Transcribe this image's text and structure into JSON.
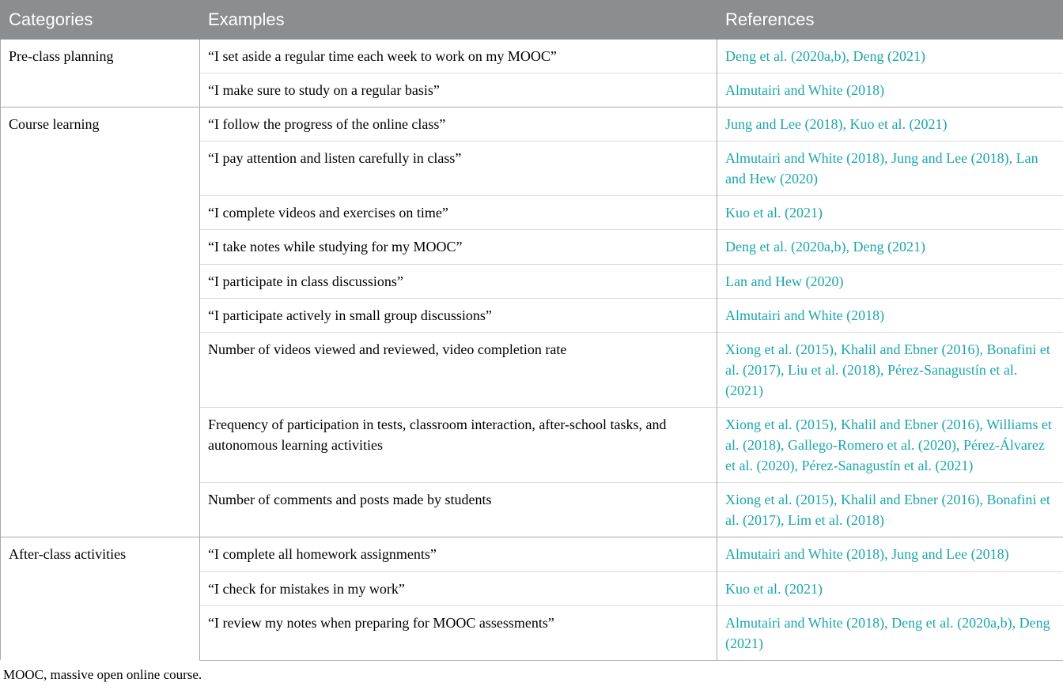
{
  "table": {
    "headers": {
      "categories": "Categories",
      "examples": "Examples",
      "references": "References"
    },
    "link_color": "#1ba6a8",
    "header_bg": "#8b8e91",
    "header_fg": "#ffffff",
    "border_color": "#a9a9a9",
    "inner_border_color": "#dcdcdc",
    "groups": [
      {
        "category": "Pre-class planning",
        "rows": [
          {
            "example": "“I set aside a regular time each week to work on my MOOC”",
            "refs": [
              {
                "t": "Deng et al. (",
                "l": false
              },
              {
                "t": "2020a",
                "l": true
              },
              {
                "t": ",",
                "l": false
              },
              {
                "t": "b",
                "l": true
              },
              {
                "t": "), ",
                "l": false
              },
              {
                "t": "Deng (",
                "l": false
              },
              {
                "t": "2021",
                "l": true
              },
              {
                "t": ")",
                "l": false
              }
            ]
          },
          {
            "example": "“I make sure to study on a regular basis”",
            "refs": [
              {
                "t": "Almutairi and White (",
                "l": false
              },
              {
                "t": "2018",
                "l": true
              },
              {
                "t": ")",
                "l": false
              }
            ]
          }
        ]
      },
      {
        "category": "Course learning",
        "rows": [
          {
            "example": "“I follow the progress of the online class”",
            "refs": [
              {
                "t": "Jung and Lee (",
                "l": false
              },
              {
                "t": "2018",
                "l": true
              },
              {
                "t": "), ",
                "l": false
              },
              {
                "t": "Kuo et al. (",
                "l": false
              },
              {
                "t": "2021",
                "l": true
              },
              {
                "t": ")",
                "l": false
              }
            ]
          },
          {
            "example": "“I pay attention and listen carefully in class”",
            "refs": [
              {
                "t": "Almutairi and White (",
                "l": false
              },
              {
                "t": "2018",
                "l": true
              },
              {
                "t": "), ",
                "l": false
              },
              {
                "t": "Jung and Lee (",
                "l": false
              },
              {
                "t": "2018",
                "l": true
              },
              {
                "t": "), ",
                "l": false
              },
              {
                "t": "Lan and Hew (",
                "l": false
              },
              {
                "t": "2020",
                "l": true
              },
              {
                "t": ")",
                "l": false
              }
            ]
          },
          {
            "example": "“I complete videos and exercises on time”",
            "refs": [
              {
                "t": "Kuo et al. (",
                "l": false
              },
              {
                "t": "2021",
                "l": true
              },
              {
                "t": ")",
                "l": false
              }
            ]
          },
          {
            "example": "“I take notes while studying for my MOOC”",
            "refs": [
              {
                "t": "Deng et al. (",
                "l": false
              },
              {
                "t": "2020a",
                "l": true
              },
              {
                "t": ",",
                "l": false
              },
              {
                "t": "b",
                "l": true
              },
              {
                "t": "), ",
                "l": false
              },
              {
                "t": "Deng (",
                "l": false
              },
              {
                "t": "2021",
                "l": true
              },
              {
                "t": ")",
                "l": false
              }
            ]
          },
          {
            "example": "“I participate in class discussions”",
            "refs": [
              {
                "t": "Lan and Hew (",
                "l": false
              },
              {
                "t": "2020",
                "l": true
              },
              {
                "t": ")",
                "l": false
              }
            ]
          },
          {
            "example": "“I participate actively in small group discussions”",
            "refs": [
              {
                "t": "Almutairi and White (",
                "l": false
              },
              {
                "t": "2018",
                "l": true
              },
              {
                "t": ")",
                "l": false
              }
            ]
          },
          {
            "example": "Number of videos viewed and reviewed, video completion rate",
            "refs": [
              {
                "t": "Xiong et al. (",
                "l": false
              },
              {
                "t": "2015",
                "l": true
              },
              {
                "t": "), ",
                "l": false
              },
              {
                "t": "Khalil and Ebner (",
                "l": false
              },
              {
                "t": "2016",
                "l": true
              },
              {
                "t": "), ",
                "l": false
              },
              {
                "t": "Bonafini et al. (",
                "l": false
              },
              {
                "t": "2017",
                "l": true
              },
              {
                "t": "), ",
                "l": false
              },
              {
                "t": "Liu et al. (",
                "l": false
              },
              {
                "t": "2018",
                "l": true
              },
              {
                "t": "), ",
                "l": false
              },
              {
                "t": "Pérez-Sanagustín et al. (",
                "l": false
              },
              {
                "t": "2021",
                "l": true
              },
              {
                "t": ")",
                "l": false
              }
            ]
          },
          {
            "example": "Frequency of participation in tests, classroom interaction, after-school tasks, and autonomous learning activities",
            "refs": [
              {
                "t": "Xiong et al. (",
                "l": false
              },
              {
                "t": "2015",
                "l": true
              },
              {
                "t": "), ",
                "l": false
              },
              {
                "t": "Khalil and Ebner (",
                "l": false
              },
              {
                "t": "2016",
                "l": true
              },
              {
                "t": "), ",
                "l": false
              },
              {
                "t": "Williams et al. (",
                "l": false
              },
              {
                "t": "2018",
                "l": true
              },
              {
                "t": "), ",
                "l": false
              },
              {
                "t": "Gallego-Romero et al. (",
                "l": false
              },
              {
                "t": "2020",
                "l": true
              },
              {
                "t": "), ",
                "l": false
              },
              {
                "t": "Pérez-Álvarez et al. (",
                "l": false
              },
              {
                "t": "2020",
                "l": true
              },
              {
                "t": "), ",
                "l": false
              },
              {
                "t": "Pérez-Sanagustín et al. (",
                "l": false
              },
              {
                "t": "2021",
                "l": true
              },
              {
                "t": ")",
                "l": false
              }
            ]
          },
          {
            "example": "Number of comments and posts made by students",
            "refs": [
              {
                "t": "Xiong et al. (",
                "l": false
              },
              {
                "t": "2015",
                "l": true
              },
              {
                "t": "), ",
                "l": false
              },
              {
                "t": "Khalil and Ebner (",
                "l": false
              },
              {
                "t": "2016",
                "l": true
              },
              {
                "t": "), ",
                "l": false
              },
              {
                "t": "Bonafini et al. (",
                "l": false
              },
              {
                "t": "2017",
                "l": true
              },
              {
                "t": "), ",
                "l": false
              },
              {
                "t": "Lim et al. (",
                "l": false
              },
              {
                "t": "2018",
                "l": true
              },
              {
                "t": ")",
                "l": false
              }
            ]
          }
        ]
      },
      {
        "category": "After-class activities",
        "rows": [
          {
            "example": "“I complete all homework assignments”",
            "refs": [
              {
                "t": "Almutairi and White (",
                "l": false
              },
              {
                "t": "2018",
                "l": true
              },
              {
                "t": "), ",
                "l": false
              },
              {
                "t": "Jung and Lee (",
                "l": false
              },
              {
                "t": "2018",
                "l": true
              },
              {
                "t": ")",
                "l": false
              }
            ]
          },
          {
            "example": "“I check for mistakes in my work”",
            "refs": [
              {
                "t": "Kuo et al. (",
                "l": false
              },
              {
                "t": "2021",
                "l": true
              },
              {
                "t": ")",
                "l": false
              }
            ]
          },
          {
            "example": "“I review my notes when preparing for MOOC assessments”",
            "refs": [
              {
                "t": "Almutairi and White (",
                "l": false
              },
              {
                "t": "2018",
                "l": true
              },
              {
                "t": "), ",
                "l": false
              },
              {
                "t": "Deng et al. (",
                "l": false
              },
              {
                "t": "2020a",
                "l": true
              },
              {
                "t": ",",
                "l": false
              },
              {
                "t": "b",
                "l": true
              },
              {
                "t": "), ",
                "l": false
              },
              {
                "t": "Deng (",
                "l": false
              },
              {
                "t": "2021",
                "l": true
              },
              {
                "t": ")",
                "l": false
              }
            ]
          }
        ]
      }
    ],
    "footnote": "MOOC, massive open online course."
  }
}
